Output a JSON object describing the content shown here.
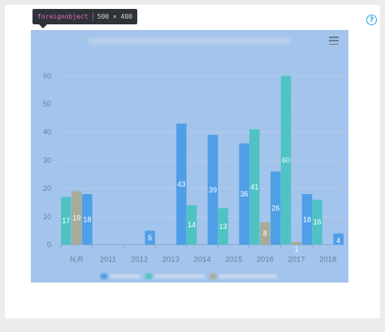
{
  "inspector_tooltip": {
    "tag": "foreignobject",
    "size": "500 × 400"
  },
  "help_icon": {
    "glyph": "?",
    "icon": "help-circle-icon",
    "color": "#29a8e0"
  },
  "menu_icon": {
    "icon": "hamburger-menu-icon"
  },
  "colors": {
    "highlight": "#a3c4ec",
    "series_blue": "#4f9ee8",
    "series_teal": "#4fc3c4",
    "series_gray": "#a8aa9a"
  },
  "chart_data": {
    "type": "bar",
    "categories": [
      "N.R",
      "2011",
      "2012",
      "2013",
      "2014",
      "2015",
      "2016",
      "2017",
      "2018"
    ],
    "ylim": [
      0,
      65
    ],
    "yticks": [
      0,
      10,
      20,
      30,
      40,
      50,
      60
    ],
    "grid": true,
    "legend_position": "bottom",
    "series": [
      {
        "color": "#4f9ee8",
        "values": [
          18,
          null,
          5,
          43,
          39,
          36,
          26,
          18,
          4
        ]
      },
      {
        "color": "#4fc3c4",
        "values": [
          17,
          null,
          null,
          null,
          14,
          13,
          41,
          60,
          16
        ]
      },
      {
        "color": "#a8aa9a",
        "values": [
          19,
          null,
          null,
          null,
          null,
          null,
          8,
          1,
          null
        ]
      }
    ]
  }
}
